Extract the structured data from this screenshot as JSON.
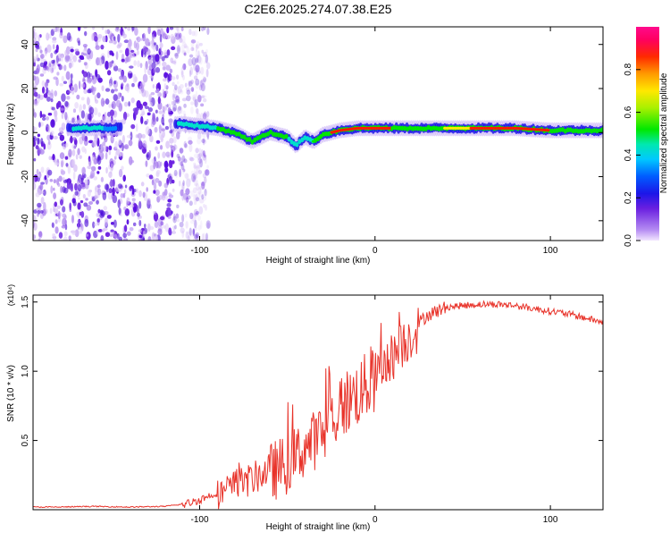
{
  "title": "C2E6.2025.274.07.38.E25",
  "chart_data": [
    {
      "type": "heatmap",
      "xlabel": "Height of straight line (km)",
      "ylabel": "Frequency (Hz)",
      "xlim": [
        -195,
        130
      ],
      "ylim": [
        -49,
        48
      ],
      "xticks": [
        -100,
        0,
        100
      ],
      "xtick_labels": [
        "-100",
        "0",
        "100"
      ],
      "yticks": [
        -40,
        -20,
        0,
        20,
        40
      ],
      "ytick_labels": [
        "-40",
        "-20",
        "0",
        "20",
        "40"
      ],
      "colorbar": {
        "label": "Normalized spectral amplitude",
        "range": [
          0,
          1
        ],
        "ticks": [
          0,
          0.2,
          0.4,
          0.6,
          0.8
        ],
        "tick_labels": [
          "0.0",
          "0.2",
          "0.4",
          "0.6",
          "0.8"
        ],
        "colormap": "rainbow (light purple → blue → cyan → green → yellow → red → magenta)"
      },
      "signal_track": {
        "x": [
          -170,
          -150,
          -110,
          -100,
          -90,
          -80,
          -70,
          -60,
          -50,
          -45,
          -40,
          -35,
          -30,
          -25,
          -20,
          -10,
          0,
          20,
          40,
          60,
          80,
          100,
          130
        ],
        "y": [
          2,
          2,
          4,
          3,
          2,
          0,
          -4,
          0,
          -2,
          -6,
          -2,
          -4,
          -1,
          0,
          1,
          2,
          2,
          2,
          2,
          2,
          2,
          1,
          1
        ],
        "note": "strongest amplitude (red) near -20..0 km and 60..100 km; diffuse noise for x < -105 km"
      }
    },
    {
      "type": "line",
      "xlabel": "Height of straight line (km)",
      "ylabel": "SNR (10 * v/v)",
      "y_scale_label": "(x10⁴)",
      "xlim": [
        -195,
        130
      ],
      "ylim": [
        0,
        1.55
      ],
      "xticks": [
        -100,
        0,
        100
      ],
      "xtick_labels": [
        "-100",
        "0",
        "100"
      ],
      "yticks": [
        0.5,
        1.0,
        1.5
      ],
      "ytick_labels": [
        "0.5",
        "1.0",
        "1.5"
      ],
      "color": "#e8332a",
      "series": [
        {
          "name": "SNR",
          "x": [
            -195,
            -180,
            -160,
            -140,
            -120,
            -110,
            -100,
            -90,
            -80,
            -70,
            -60,
            -50,
            -40,
            -30,
            -20,
            -10,
            0,
            10,
            20,
            30,
            40,
            50,
            60,
            70,
            80,
            90,
            100,
            110,
            120,
            130
          ],
          "y": [
            0.02,
            0.02,
            0.025,
            0.02,
            0.025,
            0.04,
            0.08,
            0.13,
            0.2,
            0.25,
            0.32,
            0.38,
            0.5,
            0.6,
            0.8,
            0.9,
            1.0,
            1.15,
            1.3,
            1.42,
            1.47,
            1.48,
            1.49,
            1.49,
            1.48,
            1.46,
            1.44,
            1.42,
            1.39,
            1.36
          ]
        }
      ]
    }
  ]
}
